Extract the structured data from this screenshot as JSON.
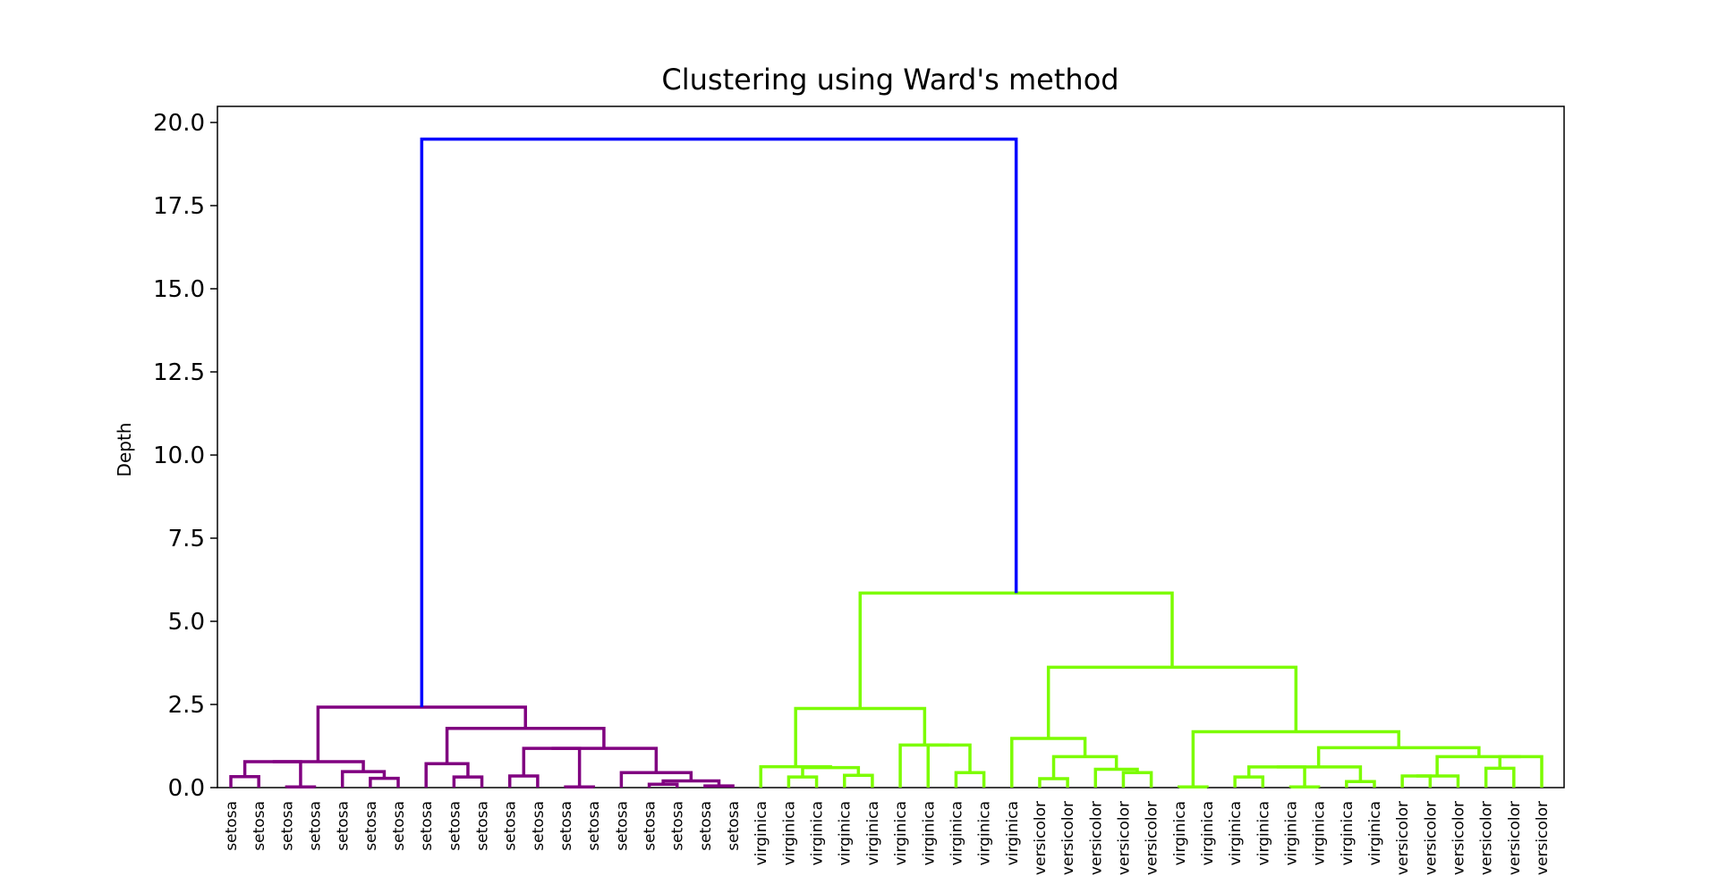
{
  "chart_data": {
    "type": "dendrogram",
    "title": "Clustering using Ward's method",
    "xlabel": "",
    "ylabel": "Depth",
    "ylim": [
      0,
      20.5
    ],
    "yticks": [
      "0.0",
      "2.5",
      "5.0",
      "7.5",
      "10.0",
      "12.5",
      "15.0",
      "17.5",
      "20.0"
    ],
    "grid": false,
    "colors": {
      "setosa_cluster": "#800080",
      "other_cluster": "#7cfc00",
      "root": "#0000ff"
    },
    "leaves": [
      "setosa",
      "setosa",
      "setosa",
      "setosa",
      "setosa",
      "setosa",
      "setosa",
      "setosa",
      "setosa",
      "setosa",
      "setosa",
      "setosa",
      "setosa",
      "setosa",
      "setosa",
      "setosa",
      "setosa",
      "setosa",
      "setosa",
      "virginica",
      "virginica",
      "virginica",
      "virginica",
      "virginica",
      "virginica",
      "virginica",
      "virginica",
      "virginica",
      "virginica",
      "versicolor",
      "versicolor",
      "versicolor",
      "versicolor",
      "versicolor",
      "virginica",
      "virginica",
      "virginica",
      "virginica",
      "virginica",
      "virginica",
      "virginica",
      "virginica",
      "versicolor",
      "versicolor",
      "versicolor",
      "versicolor",
      "versicolor",
      "versicolor"
    ],
    "merges": [
      {
        "left": "L0",
        "right": "L1",
        "height": 0.33,
        "color": "setosa_cluster"
      },
      {
        "left": "L2",
        "right": "L3",
        "height": 0.02,
        "color": "setosa_cluster"
      },
      {
        "left": "M0",
        "right": "M1",
        "height": 0.78,
        "color": "setosa_cluster"
      },
      {
        "left": "L5",
        "right": "L6",
        "height": 0.28,
        "color": "setosa_cluster"
      },
      {
        "left": "L4",
        "right": "M3",
        "height": 0.48,
        "color": "setosa_cluster"
      },
      {
        "left": "M2",
        "right": "M4",
        "height": 0.78,
        "color": "setosa_cluster"
      },
      {
        "left": "L8",
        "right": "L9",
        "height": 0.32,
        "color": "setosa_cluster"
      },
      {
        "left": "L7",
        "right": "M6",
        "height": 0.72,
        "color": "setosa_cluster"
      },
      {
        "left": "L10",
        "right": "L11",
        "height": 0.35,
        "color": "setosa_cluster"
      },
      {
        "left": "L12",
        "right": "L13",
        "height": 0.02,
        "color": "setosa_cluster"
      },
      {
        "left": "M8",
        "right": "M9",
        "height": 1.18,
        "color": "setosa_cluster"
      },
      {
        "left": "L15",
        "right": "L16",
        "height": 0.1,
        "color": "setosa_cluster"
      },
      {
        "left": "L17",
        "right": "L18",
        "height": 0.05,
        "color": "setosa_cluster"
      },
      {
        "left": "M11",
        "right": "M12",
        "height": 0.2,
        "color": "setosa_cluster"
      },
      {
        "left": "L14",
        "right": "M13",
        "height": 0.45,
        "color": "setosa_cluster"
      },
      {
        "left": "M10",
        "right": "M14",
        "height": 1.18,
        "color": "setosa_cluster"
      },
      {
        "left": "M7",
        "right": "M15",
        "height": 1.78,
        "color": "setosa_cluster"
      },
      {
        "left": "M5",
        "right": "M16",
        "height": 2.42,
        "color": "setosa_cluster"
      },
      {
        "left": "L20",
        "right": "L21",
        "height": 0.32,
        "color": "other_cluster"
      },
      {
        "left": "L22",
        "right": "L23",
        "height": 0.37,
        "color": "other_cluster"
      },
      {
        "left": "M18",
        "right": "M19",
        "height": 0.6,
        "color": "other_cluster"
      },
      {
        "left": "L19",
        "right": "M20",
        "height": 0.63,
        "color": "other_cluster"
      },
      {
        "left": "L26",
        "right": "L27",
        "height": 0.45,
        "color": "other_cluster"
      },
      {
        "left": "L25",
        "right": "M22",
        "height": 1.28,
        "color": "other_cluster"
      },
      {
        "left": "L24",
        "right": "M23",
        "height": 1.28,
        "color": "other_cluster"
      },
      {
        "left": "M21",
        "right": "M24",
        "height": 2.38,
        "color": "other_cluster"
      },
      {
        "left": "L29",
        "right": "L30",
        "height": 0.27,
        "color": "other_cluster"
      },
      {
        "left": "L32",
        "right": "L33",
        "height": 0.45,
        "color": "other_cluster"
      },
      {
        "left": "L31",
        "right": "M27",
        "height": 0.55,
        "color": "other_cluster"
      },
      {
        "left": "M26",
        "right": "M28",
        "height": 0.93,
        "color": "other_cluster"
      },
      {
        "left": "L28",
        "right": "M29",
        "height": 1.48,
        "color": "other_cluster"
      },
      {
        "left": "L34",
        "right": "L35",
        "height": 0.02,
        "color": "other_cluster"
      },
      {
        "left": "L36",
        "right": "L37",
        "height": 0.32,
        "color": "other_cluster"
      },
      {
        "left": "L38",
        "right": "L39",
        "height": 0.02,
        "color": "other_cluster"
      },
      {
        "left": "M32",
        "right": "M33",
        "height": 0.62,
        "color": "other_cluster"
      },
      {
        "left": "L40",
        "right": "L41",
        "height": 0.18,
        "color": "other_cluster"
      },
      {
        "left": "M34",
        "right": "M35",
        "height": 0.62,
        "color": "other_cluster"
      },
      {
        "left": "L42",
        "right": "L43",
        "height": 0.35,
        "color": "other_cluster"
      },
      {
        "left": "L44",
        "right": "M37",
        "height": 0.35,
        "color": "other_cluster"
      },
      {
        "left": "L45",
        "right": "L46",
        "height": 0.58,
        "color": "other_cluster"
      },
      {
        "left": "L47",
        "right": "M39",
        "height": 0.93,
        "color": "other_cluster"
      },
      {
        "left": "M38",
        "right": "M40",
        "height": 0.93,
        "color": "other_cluster"
      },
      {
        "left": "M36",
        "right": "M41",
        "height": 1.2,
        "color": "other_cluster"
      },
      {
        "left": "M31",
        "right": "M42",
        "height": 1.68,
        "color": "other_cluster"
      },
      {
        "left": "M30",
        "right": "M43",
        "height": 3.62,
        "color": "other_cluster"
      },
      {
        "left": "M25",
        "right": "M44",
        "height": 5.85,
        "color": "other_cluster"
      },
      {
        "left": "M17",
        "right": "M45",
        "height": 19.5,
        "color": "root"
      }
    ]
  }
}
